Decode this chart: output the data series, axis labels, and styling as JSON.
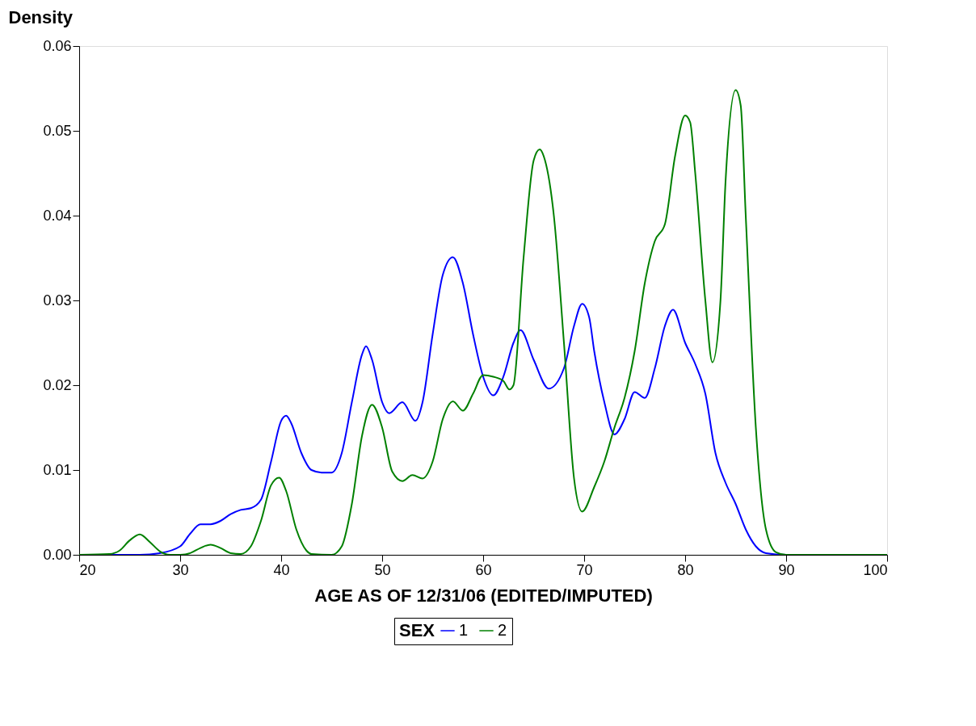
{
  "chart_data": {
    "type": "line",
    "xlabel": "AGE AS OF 12/31/06 (EDITED/IMPUTED)",
    "ylabel": "Density",
    "legend_title": "SEX",
    "xlim": [
      20,
      100
    ],
    "xticks": [
      20,
      30,
      40,
      50,
      60,
      70,
      80,
      90,
      100
    ],
    "ylim": [
      0,
      0.06
    ],
    "yticks": [
      {
        "value": 0,
        "label": "0.00"
      },
      {
        "value": 0.01,
        "label": "0.01"
      },
      {
        "value": 0.02,
        "label": "0.02"
      },
      {
        "value": 0.03,
        "label": "0.03"
      },
      {
        "value": 0.04,
        "label": "0.04"
      },
      {
        "value": 0.05,
        "label": "0.05"
      },
      {
        "value": 0.06,
        "label": "0.06"
      }
    ],
    "grid": false,
    "legend": "bottom",
    "marker": "none",
    "line_style": "solid",
    "series": [
      {
        "name": "1",
        "color": "#0000ff",
        "x": [
          20,
          26,
          28,
          30,
          31,
          32,
          33,
          34,
          35,
          36,
          37,
          38,
          39,
          40,
          40.5,
          41,
          42,
          43,
          44,
          45,
          46,
          47,
          48,
          48.4,
          49,
          50,
          50.7,
          52,
          53.3,
          54,
          55,
          56,
          57,
          58,
          59,
          60,
          61,
          62,
          63,
          63.7,
          65,
          66.5,
          68,
          69,
          69.8,
          70.5,
          71,
          72,
          73,
          74,
          75,
          76,
          77,
          78,
          78.8,
          80,
          81,
          82,
          83,
          84,
          85,
          86,
          87,
          88,
          90,
          100
        ],
        "values": [
          0,
          0,
          0.0002,
          0.001,
          0.0025,
          0.0036,
          0.0036,
          0.004,
          0.0048,
          0.0053,
          0.0055,
          0.0065,
          0.011,
          0.0158,
          0.0164,
          0.0155,
          0.012,
          0.01,
          0.0097,
          0.0097,
          0.012,
          0.018,
          0.0236,
          0.0246,
          0.023,
          0.018,
          0.0167,
          0.018,
          0.0158,
          0.018,
          0.026,
          0.033,
          0.0351,
          0.032,
          0.026,
          0.021,
          0.0188,
          0.021,
          0.025,
          0.0265,
          0.023,
          0.0196,
          0.022,
          0.027,
          0.0296,
          0.028,
          0.024,
          0.018,
          0.0142,
          0.016,
          0.0192,
          0.0185,
          0.022,
          0.027,
          0.0289,
          0.025,
          0.0225,
          0.019,
          0.012,
          0.0085,
          0.006,
          0.003,
          0.001,
          0.0002,
          0,
          0
        ]
      },
      {
        "name": "2",
        "color": "#008000",
        "x": [
          20,
          23,
          24,
          25,
          26,
          27,
          28,
          29,
          30,
          31,
          32,
          33,
          34,
          35,
          36,
          37,
          38,
          39,
          39.8,
          40.5,
          41.5,
          42.5,
          43,
          45,
          46,
          47,
          48,
          49,
          50,
          51,
          52,
          53,
          54,
          55,
          56,
          57,
          58,
          59,
          60,
          61,
          62,
          62.6,
          63,
          64,
          65,
          65.6,
          66,
          67,
          68,
          69,
          69.8,
          71,
          72,
          73,
          74,
          75,
          76,
          77,
          78,
          79,
          80,
          80.5,
          81,
          82,
          82.7,
          83.5,
          84,
          85,
          85.5,
          86,
          87,
          88,
          89,
          90,
          100
        ],
        "values": [
          0,
          0.0001,
          0.0005,
          0.0017,
          0.0024,
          0.0015,
          0.0004,
          0,
          0,
          0.0002,
          0.0008,
          0.0012,
          0.0008,
          0.0002,
          0.0001,
          0.001,
          0.004,
          0.0082,
          0.0091,
          0.0075,
          0.003,
          0.0005,
          0.0001,
          0,
          0.001,
          0.006,
          0.014,
          0.0177,
          0.015,
          0.0098,
          0.0087,
          0.0094,
          0.009,
          0.011,
          0.016,
          0.0181,
          0.017,
          0.019,
          0.0212,
          0.021,
          0.0205,
          0.0195,
          0.02,
          0.035,
          0.0465,
          0.0478,
          0.047,
          0.04,
          0.025,
          0.009,
          0.0051,
          0.008,
          0.011,
          0.015,
          0.0185,
          0.024,
          0.032,
          0.037,
          0.039,
          0.047,
          0.0518,
          0.051,
          0.045,
          0.03,
          0.0227,
          0.03,
          0.044,
          0.0548,
          0.053,
          0.04,
          0.015,
          0.003,
          0.0003,
          0,
          0
        ]
      }
    ]
  }
}
